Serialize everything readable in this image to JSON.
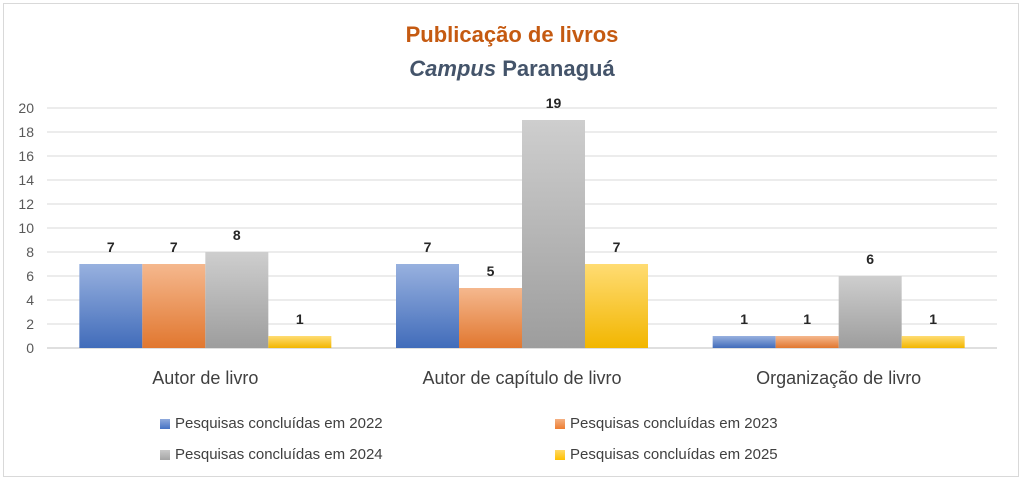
{
  "chart_data": {
    "type": "bar",
    "title": "Publicação de livros",
    "subtitle_italic": "Campus",
    "subtitle_rest": "Paranaguá",
    "categories": [
      "Autor de livro",
      "Autor de capítulo de livro",
      "Organização de livro"
    ],
    "series": [
      {
        "name": "Pesquisas concluídas em 2022",
        "values": [
          7,
          7,
          1
        ],
        "color": "#4472c4"
      },
      {
        "name": "Pesquisas concluídas em 2023",
        "values": [
          7,
          5,
          1
        ],
        "color": "#ed7d31"
      },
      {
        "name": "Pesquisas concluídas em 2024",
        "values": [
          8,
          19,
          6
        ],
        "color": "#a5a5a5"
      },
      {
        "name": "Pesquisas concluídas em 2025",
        "values": [
          1,
          7,
          1
        ],
        "color": "#ffc000"
      }
    ],
    "ylim": [
      0,
      20
    ],
    "yticks": [
      0,
      2,
      4,
      6,
      8,
      10,
      12,
      14,
      16,
      18,
      20
    ],
    "grid": true,
    "legend_position": "bottom"
  }
}
